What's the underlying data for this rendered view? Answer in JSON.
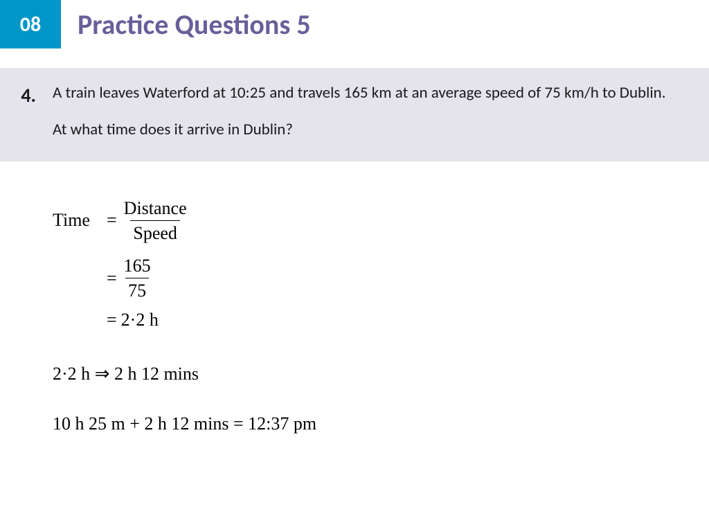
{
  "header": {
    "chapter": "08",
    "title": "Practice Questions 5",
    "badge_bg": "#0096c8",
    "badge_color": "#ffffff",
    "title_color": "#6a5e9a"
  },
  "question": {
    "number": "4.",
    "line1": "A train leaves Waterford at 10:25 and travels 165 km at an average speed of 75 km/h to Dublin.",
    "line2": "At what time does it arrive in Dublin?",
    "bg": "#e5e3ec",
    "text_color": "#1a1a1a"
  },
  "solution": {
    "formula": {
      "lhs": "Time",
      "eq": "=",
      "numerator": "Distance",
      "denominator": "Speed"
    },
    "step2": {
      "eq": "=",
      "numerator": "165",
      "denominator": "75"
    },
    "step3": {
      "eq": "=",
      "value": "2·2 h"
    },
    "conversion": "2·2 h ⇒ 2 h 12 mins",
    "final": "10 h 25 m  +  2 h 12 mins = 12:37 pm",
    "font_family": "Times New Roman",
    "text_color": "#000000"
  }
}
